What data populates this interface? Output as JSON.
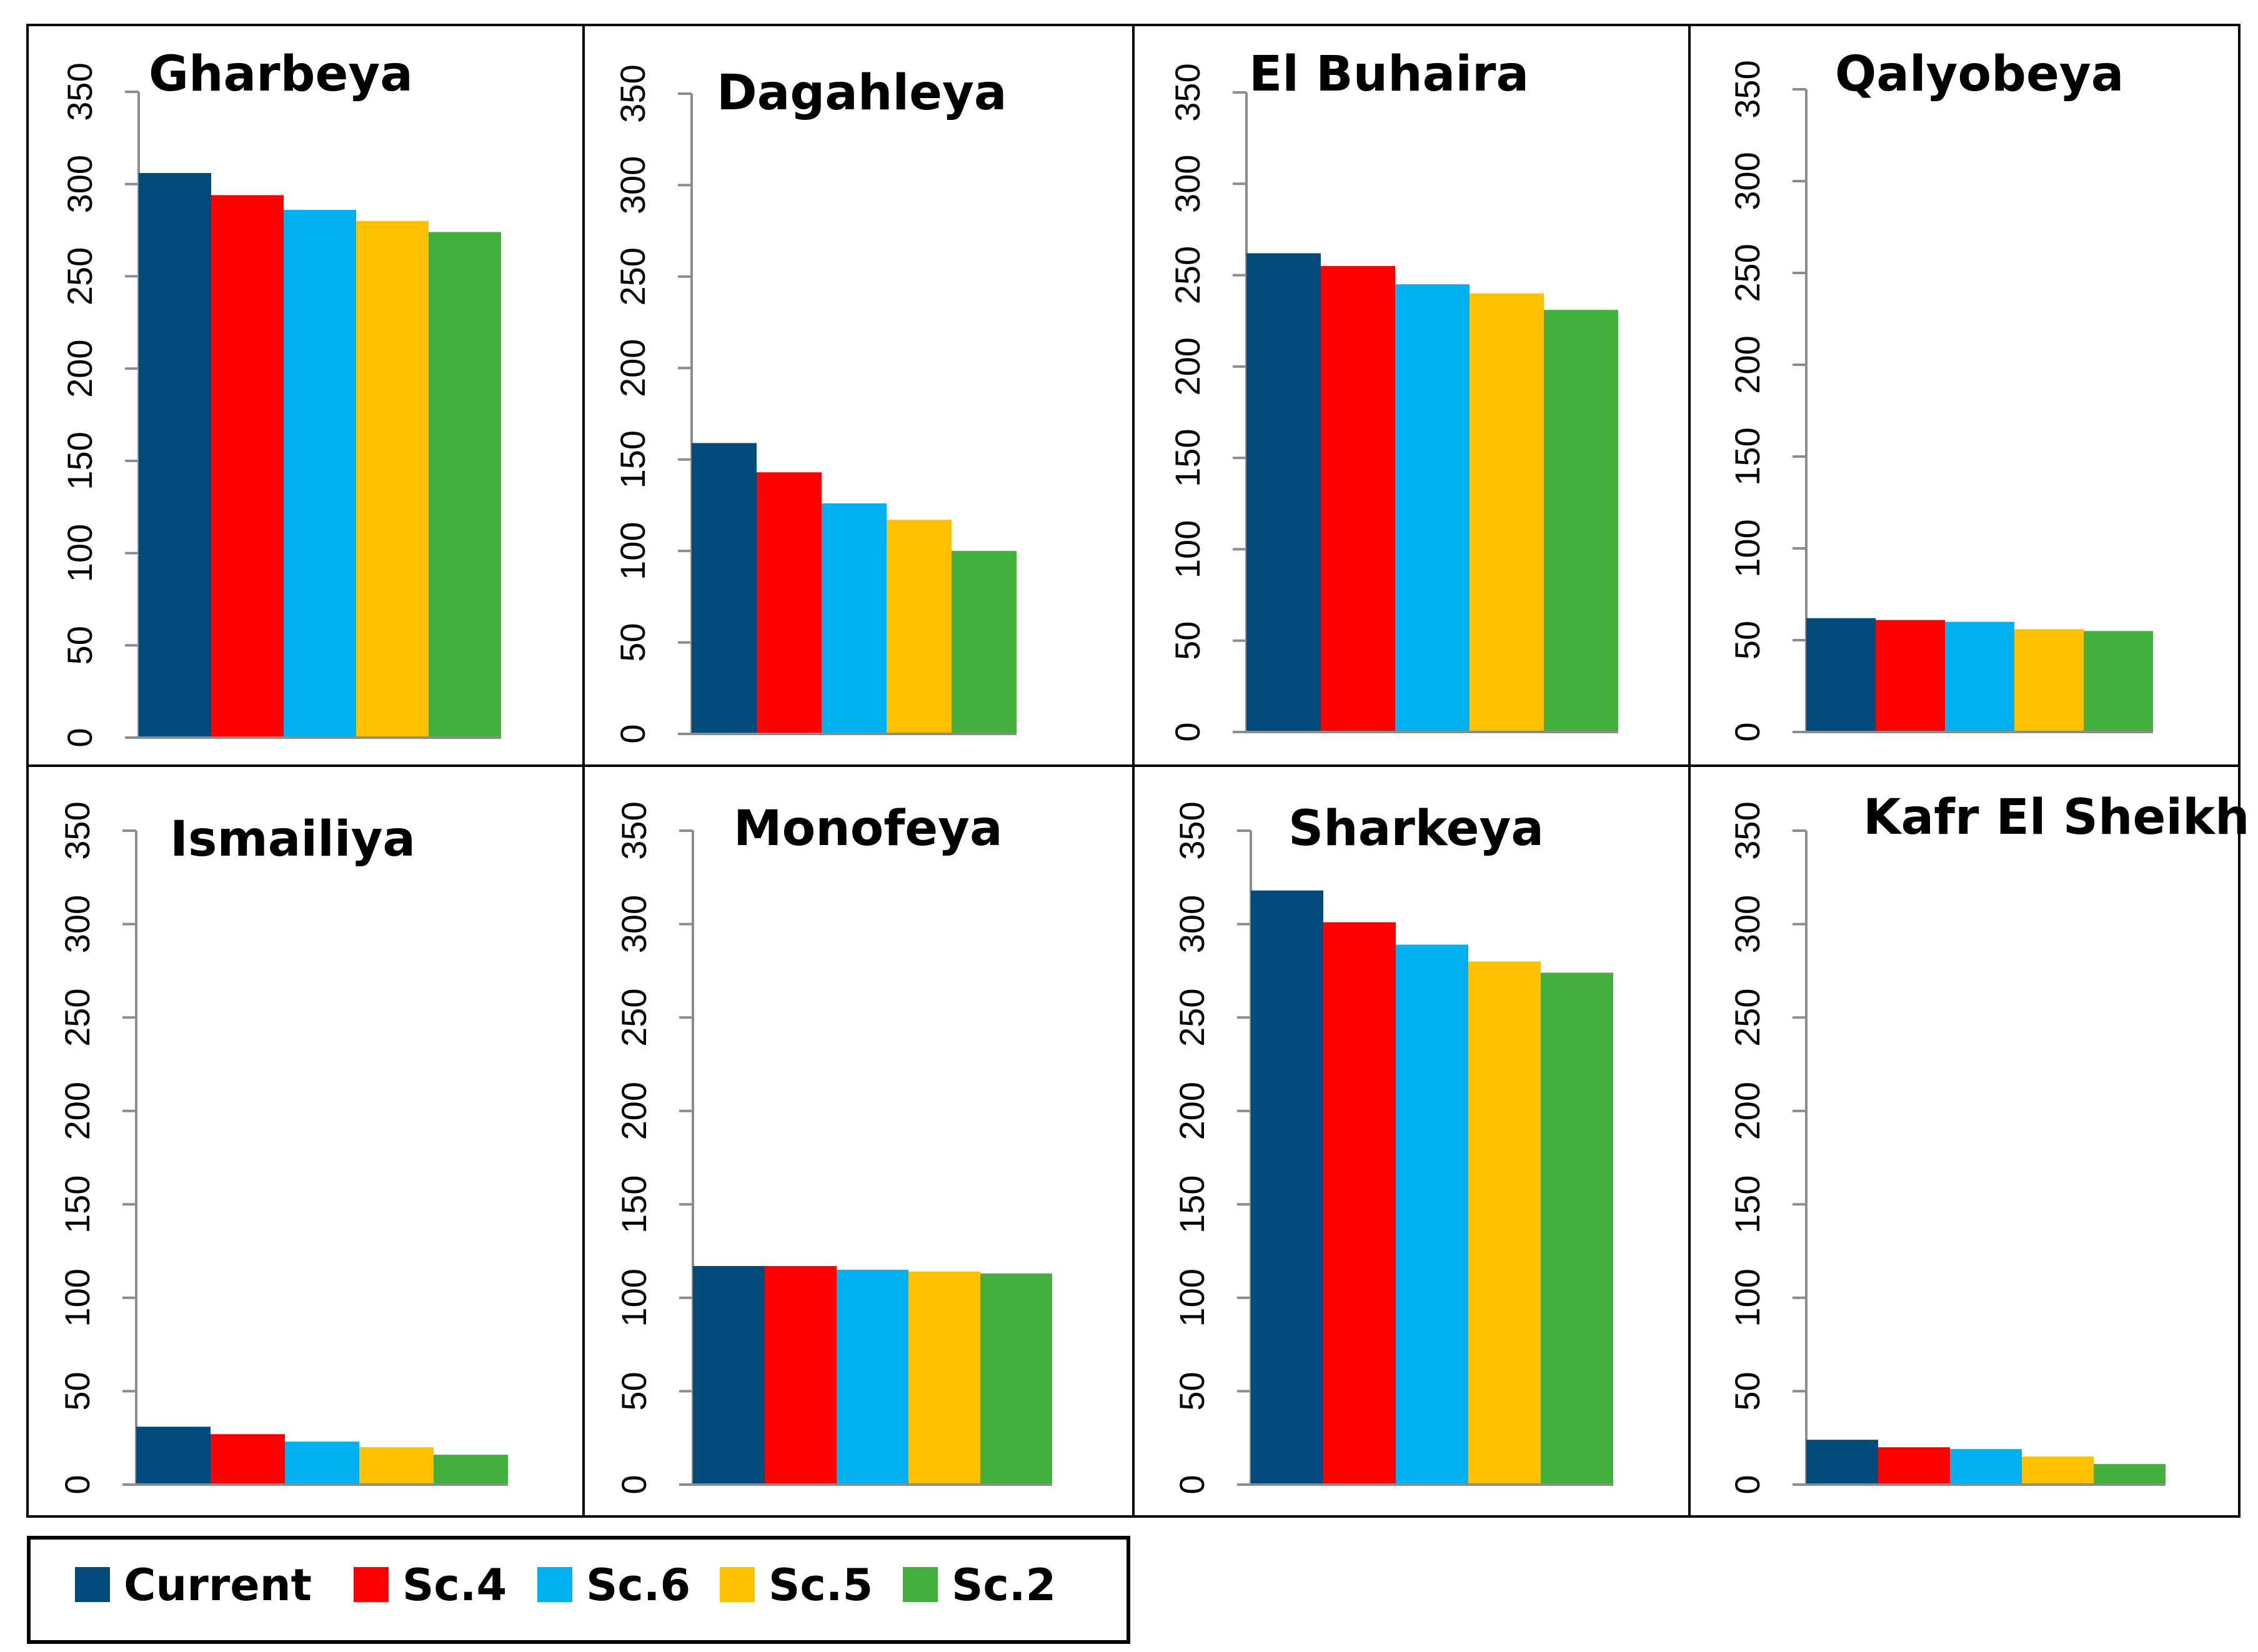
{
  "chart_data": {
    "type": "bar",
    "layout": "small-multiples",
    "grid": false,
    "legend_position": "bottom-left",
    "series": [
      {
        "name": "Current",
        "color": "#004a7c"
      },
      {
        "name": "Sc.4",
        "color": "#ff0000"
      },
      {
        "name": "Sc.6",
        "color": "#00b0f0"
      },
      {
        "name": "Sc.5",
        "color": "#ffc000"
      },
      {
        "name": "Sc.2",
        "color": "#41b03c"
      }
    ],
    "ylim": [
      0,
      350
    ],
    "yticks": [
      0,
      50,
      100,
      150,
      200,
      250,
      300,
      350
    ],
    "panels": [
      {
        "title": "Gharbeya",
        "values": [
          306,
          294,
          286,
          280,
          274
        ]
      },
      {
        "title": "Dagahleya",
        "values": [
          159,
          143,
          126,
          117,
          100
        ]
      },
      {
        "title": "El Buhaira",
        "values": [
          262,
          255,
          245,
          240,
          231
        ]
      },
      {
        "title": "Qalyobeya",
        "values": [
          62,
          61,
          60,
          56,
          55
        ]
      },
      {
        "title": "Ismailiya",
        "values": [
          31,
          27,
          23,
          20,
          16
        ]
      },
      {
        "title": "Monofeya",
        "values": [
          117,
          117,
          115,
          114,
          113
        ]
      },
      {
        "title": "Sharkeya",
        "values": [
          318,
          301,
          289,
          280,
          274
        ]
      },
      {
        "title": "Kafr El Sheikh",
        "values": [
          24,
          20,
          19,
          15,
          11
        ]
      }
    ]
  }
}
